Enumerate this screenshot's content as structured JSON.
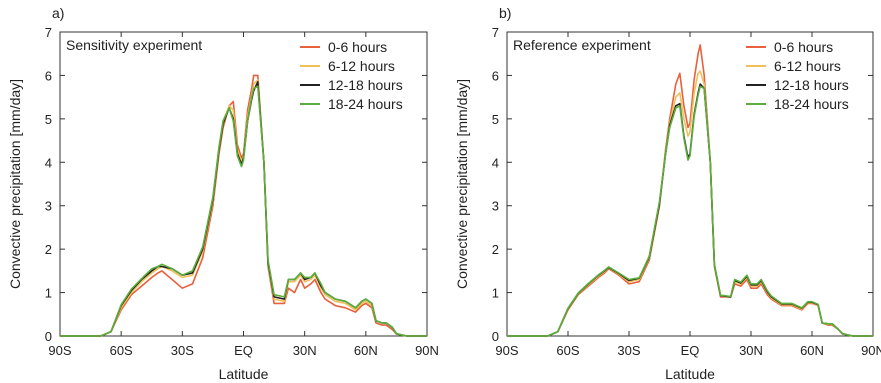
{
  "chart_data": [
    {
      "type": "line",
      "panel_label": "a)",
      "title": "Sensitivity experiment",
      "xlabel": "Latitude",
      "ylabel": "Convective precipitation [mm/day]",
      "xlim": [
        -90,
        90
      ],
      "ylim": [
        0,
        7
      ],
      "xticks": [
        -90,
        -60,
        -30,
        0,
        30,
        60,
        90
      ],
      "xtick_labels": [
        "90S",
        "60S",
        "30S",
        "EQ",
        "30N",
        "60N",
        "90N"
      ],
      "yticks": [
        0,
        1,
        2,
        3,
        4,
        5,
        6,
        7
      ],
      "ytick_labels": [
        "0",
        "1",
        "2",
        "3",
        "4",
        "5",
        "6",
        "7"
      ],
      "grid": false,
      "legend_position": "top-right",
      "x": [
        -90,
        -80,
        -70,
        -65,
        -60,
        -55,
        -50,
        -45,
        -42,
        -40,
        -35,
        -30,
        -25,
        -20,
        -15,
        -12,
        -10,
        -7,
        -5,
        -3,
        -1,
        0,
        2,
        4,
        5,
        7,
        10,
        12,
        15,
        20,
        22,
        25,
        28,
        30,
        33,
        35,
        38,
        40,
        45,
        50,
        55,
        58,
        60,
        63,
        65,
        68,
        70,
        73,
        75,
        80,
        85,
        90
      ],
      "series": [
        {
          "name": "0-6 hours",
          "color": "#e8603c",
          "values": [
            0,
            0,
            0,
            0.1,
            0.6,
            0.95,
            1.15,
            1.35,
            1.45,
            1.5,
            1.3,
            1.1,
            1.2,
            1.8,
            3.0,
            4.2,
            4.8,
            5.3,
            5.4,
            4.4,
            4.1,
            4.2,
            5.2,
            5.7,
            6.0,
            6.0,
            4.0,
            1.6,
            0.75,
            0.75,
            1.1,
            1.0,
            1.3,
            1.1,
            1.2,
            1.3,
            1.0,
            0.85,
            0.7,
            0.65,
            0.55,
            0.7,
            0.75,
            0.65,
            0.3,
            0.25,
            0.25,
            0.15,
            0.05,
            0,
            0,
            0
          ]
        },
        {
          "name": "6-12 hours",
          "color": "#f2c05a",
          "values": [
            0,
            0,
            0,
            0.1,
            0.65,
            1.0,
            1.25,
            1.45,
            1.55,
            1.6,
            1.5,
            1.35,
            1.4,
            1.95,
            3.1,
            4.3,
            4.95,
            5.3,
            5.2,
            4.3,
            4.0,
            4.15,
            5.05,
            5.55,
            5.8,
            5.9,
            4.0,
            1.65,
            0.85,
            0.8,
            1.25,
            1.25,
            1.4,
            1.25,
            1.3,
            1.4,
            1.1,
            0.95,
            0.8,
            0.75,
            0.6,
            0.75,
            0.8,
            0.7,
            0.35,
            0.3,
            0.3,
            0.2,
            0.05,
            0,
            0,
            0
          ]
        },
        {
          "name": "12-18 hours",
          "color": "#222222",
          "values": [
            0,
            0,
            0,
            0.1,
            0.7,
            1.05,
            1.3,
            1.5,
            1.6,
            1.6,
            1.55,
            1.4,
            1.45,
            2.0,
            3.15,
            4.3,
            4.9,
            5.25,
            5.0,
            4.2,
            3.95,
            4.1,
            4.95,
            5.45,
            5.65,
            5.85,
            4.0,
            1.7,
            0.9,
            0.85,
            1.3,
            1.3,
            1.45,
            1.3,
            1.35,
            1.45,
            1.15,
            1.0,
            0.85,
            0.8,
            0.65,
            0.8,
            0.85,
            0.75,
            0.35,
            0.3,
            0.3,
            0.2,
            0.05,
            0,
            0,
            0
          ]
        },
        {
          "name": "18-24 hours",
          "color": "#5aae3c",
          "values": [
            0,
            0,
            0,
            0.1,
            0.72,
            1.08,
            1.32,
            1.55,
            1.6,
            1.65,
            1.55,
            1.4,
            1.5,
            2.05,
            3.2,
            4.35,
            4.95,
            5.25,
            4.95,
            4.15,
            3.9,
            4.05,
            4.95,
            5.5,
            5.7,
            5.75,
            4.0,
            1.75,
            0.95,
            0.9,
            1.3,
            1.3,
            1.45,
            1.35,
            1.35,
            1.45,
            1.2,
            1.0,
            0.85,
            0.8,
            0.65,
            0.8,
            0.85,
            0.75,
            0.35,
            0.3,
            0.3,
            0.2,
            0.05,
            0,
            0,
            0
          ]
        }
      ]
    },
    {
      "type": "line",
      "panel_label": "b)",
      "title": "Reference experiment",
      "xlabel": "Latitude",
      "ylabel": "Convective precipitation [mm/day]",
      "xlim": [
        -90,
        90
      ],
      "ylim": [
        0,
        7
      ],
      "xticks": [
        -90,
        -60,
        -30,
        0,
        30,
        60,
        90
      ],
      "xtick_labels": [
        "90S",
        "60S",
        "30S",
        "EQ",
        "30N",
        "60N",
        "90N"
      ],
      "yticks": [
        0,
        1,
        2,
        3,
        4,
        5,
        6,
        7
      ],
      "ytick_labels": [
        "0",
        "1",
        "2",
        "3",
        "4",
        "5",
        "6",
        "7"
      ],
      "grid": false,
      "legend_position": "top-right",
      "x": [
        -90,
        -80,
        -70,
        -65,
        -60,
        -55,
        -50,
        -45,
        -42,
        -40,
        -35,
        -30,
        -25,
        -20,
        -15,
        -12,
        -10,
        -7,
        -5,
        -3,
        -1,
        0,
        2,
        4,
        5,
        7,
        10,
        12,
        15,
        20,
        22,
        25,
        28,
        30,
        33,
        35,
        38,
        40,
        45,
        50,
        55,
        58,
        60,
        63,
        65,
        68,
        70,
        73,
        75,
        80,
        85,
        90
      ],
      "series": [
        {
          "name": "0-6 hours",
          "color": "#e8603c",
          "values": [
            0,
            0,
            0,
            0.1,
            0.6,
            0.95,
            1.15,
            1.35,
            1.45,
            1.55,
            1.4,
            1.2,
            1.25,
            1.75,
            3.0,
            4.3,
            5.0,
            5.8,
            6.05,
            5.3,
            4.8,
            4.9,
            5.9,
            6.5,
            6.7,
            6.0,
            4.0,
            1.6,
            0.9,
            0.9,
            1.2,
            1.15,
            1.3,
            1.1,
            1.1,
            1.2,
            0.95,
            0.85,
            0.7,
            0.7,
            0.6,
            0.75,
            0.75,
            0.7,
            0.3,
            0.25,
            0.25,
            0.15,
            0.05,
            0,
            0,
            0
          ]
        },
        {
          "name": "6-12 hours",
          "color": "#f2c05a",
          "values": [
            0,
            0,
            0,
            0.1,
            0.62,
            0.97,
            1.18,
            1.38,
            1.48,
            1.57,
            1.42,
            1.25,
            1.3,
            1.8,
            3.05,
            4.25,
            4.9,
            5.5,
            5.6,
            5.0,
            4.6,
            4.7,
            5.6,
            6.05,
            6.1,
            5.8,
            4.0,
            1.62,
            0.92,
            0.9,
            1.25,
            1.2,
            1.35,
            1.15,
            1.15,
            1.25,
            1.0,
            0.88,
            0.72,
            0.72,
            0.62,
            0.77,
            0.77,
            0.7,
            0.3,
            0.27,
            0.27,
            0.15,
            0.05,
            0,
            0,
            0
          ]
        },
        {
          "name": "12-18 hours",
          "color": "#222222",
          "values": [
            0,
            0,
            0,
            0.1,
            0.63,
            0.98,
            1.2,
            1.4,
            1.5,
            1.58,
            1.44,
            1.28,
            1.33,
            1.82,
            3.05,
            4.2,
            4.85,
            5.3,
            5.35,
            4.6,
            4.1,
            4.2,
            5.1,
            5.6,
            5.8,
            5.7,
            4.0,
            1.64,
            0.93,
            0.9,
            1.28,
            1.22,
            1.38,
            1.18,
            1.18,
            1.28,
            1.02,
            0.9,
            0.74,
            0.74,
            0.64,
            0.78,
            0.78,
            0.72,
            0.3,
            0.28,
            0.28,
            0.15,
            0.05,
            0,
            0,
            0
          ]
        },
        {
          "name": "18-24 hours",
          "color": "#5aae3c",
          "values": [
            0,
            0,
            0,
            0.1,
            0.64,
            0.99,
            1.21,
            1.41,
            1.51,
            1.59,
            1.45,
            1.3,
            1.34,
            1.84,
            3.1,
            4.2,
            4.8,
            5.25,
            5.3,
            4.55,
            4.05,
            4.15,
            5.05,
            5.55,
            5.75,
            5.7,
            4.0,
            1.65,
            0.94,
            0.91,
            1.3,
            1.24,
            1.4,
            1.2,
            1.2,
            1.3,
            1.04,
            0.92,
            0.75,
            0.75,
            0.65,
            0.79,
            0.79,
            0.73,
            0.3,
            0.28,
            0.28,
            0.15,
            0.05,
            0,
            0,
            0
          ]
        }
      ]
    }
  ]
}
